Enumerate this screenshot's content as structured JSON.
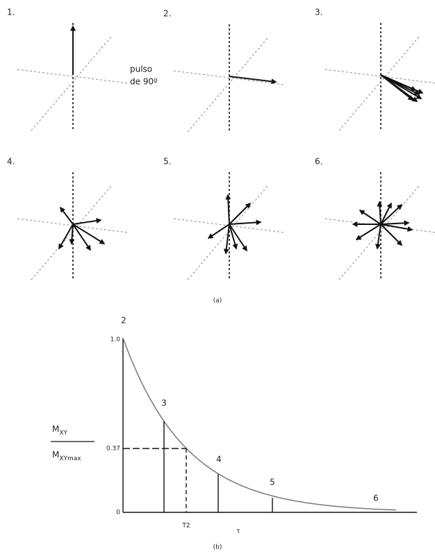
{
  "panels": [
    {
      "label": "1."
    },
    {
      "label": "2."
    },
    {
      "label": "3."
    },
    {
      "label": "4."
    },
    {
      "label": "5."
    },
    {
      "label": "6."
    }
  ],
  "pulse": {
    "line1": "pulso",
    "line2": "de 90º"
  },
  "caption_a": "(a)",
  "graph": {
    "label_y_num": "M",
    "label_y_num_sub": "XY",
    "label_y_den": "M",
    "label_y_den_sub": "XYmax",
    "tick_top": "1.0",
    "tick_mid": "0.37",
    "tick_zero": "0",
    "points": [
      "2",
      "3",
      "4",
      "5",
      "6"
    ],
    "t2": "T2",
    "tau": "τ"
  },
  "caption_b": "(b)"
}
